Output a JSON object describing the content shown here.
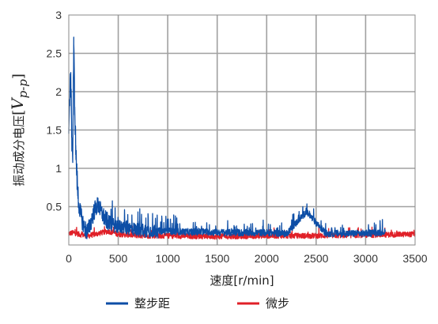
{
  "chart_data": {
    "type": "line",
    "xlabel": "速度[r/min]",
    "ylabel": {
      "text": "振动成分电压",
      "open_bracket": "[",
      "variable": "V",
      "subscript": "p-p",
      "close_bracket": "]"
    },
    "xlim": [
      0,
      3500
    ],
    "ylim": [
      0,
      3
    ],
    "x_ticks": [
      0,
      500,
      1000,
      1500,
      2000,
      2500,
      3000,
      3500
    ],
    "x_tick_labels": [
      "0",
      "500",
      "1000",
      "1500",
      "2000",
      "2500",
      "3000",
      "3500"
    ],
    "y_ticks": [
      0.5,
      1,
      1.5,
      2,
      2.5,
      3
    ],
    "y_tick_labels": [
      "0.5",
      "1",
      "1.5",
      "2",
      "2.5",
      "3"
    ],
    "grid": true,
    "legend_position": "bottom",
    "series": [
      {
        "name": "整步距",
        "color": "#0d4ea6",
        "x": [
          0,
          10,
          20,
          30,
          40,
          50,
          60,
          70,
          80,
          90,
          100,
          120,
          140,
          160,
          180,
          200,
          220,
          240,
          260,
          280,
          300,
          320,
          340,
          360,
          380,
          400,
          450,
          500,
          600,
          700,
          800,
          900,
          1000,
          1200,
          1400,
          1600,
          1800,
          2000,
          2200,
          2400,
          2600,
          2800,
          3000,
          3200
        ],
        "y": [
          1.5,
          1.9,
          2.25,
          1.4,
          1.15,
          2.62,
          1.8,
          1.3,
          0.95,
          0.7,
          0.55,
          0.4,
          0.3,
          0.22,
          0.18,
          0.2,
          0.28,
          0.38,
          0.45,
          0.5,
          0.52,
          0.45,
          0.4,
          0.35,
          0.32,
          0.3,
          0.26,
          0.24,
          0.22,
          0.2,
          0.19,
          0.18,
          0.18,
          0.17,
          0.17,
          0.16,
          0.16,
          0.16,
          0.15,
          0.43,
          0.15,
          0.15,
          0.15,
          0.17
        ]
      },
      {
        "name": "微步",
        "color": "#e02028",
        "x": [
          0,
          50,
          100,
          200,
          300,
          400,
          500,
          750,
          1000,
          1500,
          2000,
          2500,
          3000,
          3500
        ],
        "y": [
          0.15,
          0.16,
          0.14,
          0.12,
          0.15,
          0.18,
          0.14,
          0.12,
          0.12,
          0.11,
          0.12,
          0.12,
          0.13,
          0.14
        ]
      }
    ]
  }
}
